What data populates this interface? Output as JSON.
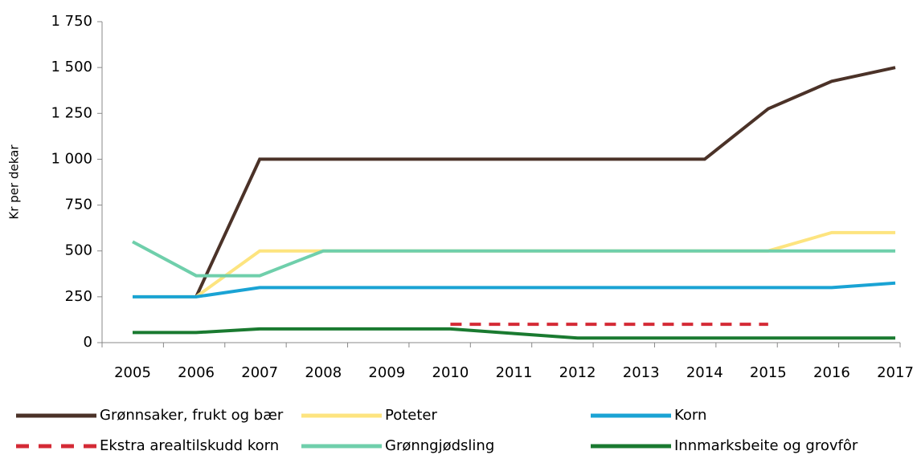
{
  "chart_data": {
    "type": "line",
    "y_label": "Kr per dekar",
    "categories": [
      "2005",
      "2006",
      "2007",
      "2008",
      "2009",
      "2010",
      "2011",
      "2012",
      "2013",
      "2014",
      "2015",
      "2016",
      "2017"
    ],
    "series": [
      {
        "name": "Grønnsaker, frukt og bær",
        "color": "#4b3228",
        "values": [
          null,
          250,
          1000,
          1000,
          1000,
          1000,
          1000,
          1000,
          1000,
          1000,
          1275,
          1425,
          1500
        ]
      },
      {
        "name": "Poteter",
        "color": "#fde47f",
        "values": [
          250,
          250,
          500,
          500,
          500,
          500,
          500,
          500,
          500,
          500,
          500,
          600,
          600
        ]
      },
      {
        "name": "Korn",
        "color": "#1aa3d4",
        "values": [
          250,
          250,
          300,
          300,
          300,
          300,
          300,
          300,
          300,
          300,
          300,
          300,
          325
        ]
      },
      {
        "name": "Ekstra arealtilskudd korn",
        "color": "#d42a35",
        "dashed": true,
        "values": [
          null,
          null,
          null,
          null,
          null,
          100,
          100,
          100,
          100,
          100,
          100,
          null,
          null
        ]
      },
      {
        "name": "Grønngjødsling",
        "color": "#6fcfab",
        "values": [
          550,
          365,
          365,
          500,
          500,
          500,
          500,
          500,
          500,
          500,
          500,
          500,
          500
        ]
      },
      {
        "name": "Innmarksbeite og grovfôr",
        "color": "#1a7a30",
        "values": [
          55,
          55,
          75,
          75,
          75,
          75,
          50,
          25,
          25,
          25,
          25,
          25,
          25
        ]
      }
    ],
    "ylim": [
      0,
      1750
    ],
    "yticks": [
      0,
      250,
      500,
      750,
      {
        "value": 1000,
        "label": "1 000"
      },
      {
        "value": 1250,
        "label": "1 250"
      },
      {
        "value": 1500,
        "label": "1 500"
      },
      {
        "value": 1750,
        "label": "1 750"
      }
    ],
    "grid": false,
    "legend": "bottom"
  }
}
